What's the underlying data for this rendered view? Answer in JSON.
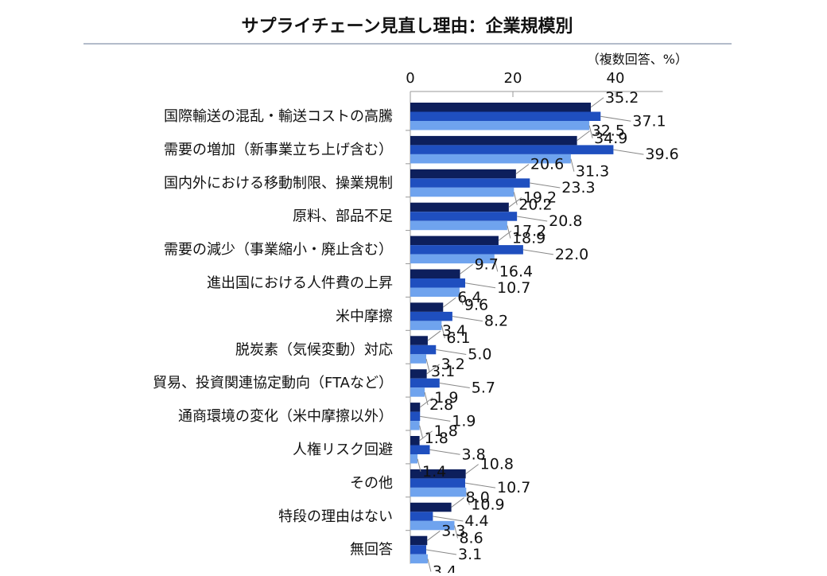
{
  "chart_data": {
    "type": "bar",
    "orientation": "horizontal",
    "title": "サプライチェーン見直し理由：企業規模別",
    "unit_note": "（複数回答、%）",
    "xticks": [
      0,
      20,
      40
    ],
    "xlim": [
      0,
      50
    ],
    "grid": false,
    "legend": "none",
    "categories": [
      "国際輸送の混乱・輸送コストの高騰",
      "需要の増加（新事業立ち上げ含む）",
      "国内外における移動制限、操業規制",
      "原料、部品不足",
      "需要の減少（事業縮小・廃止含む）",
      "進出国における人件費の上昇",
      "米中摩擦",
      "脱炭素（気候変動）対応",
      "貿易、投資関連協定動向（FTAなど）",
      "通商環境の変化（米中摩擦以外）",
      "人権リスク回避",
      "その他",
      "特段の理由はない",
      "無回答"
    ],
    "series": [
      {
        "color": "#0d1f5c",
        "values": [
          35.2,
          32.5,
          20.6,
          19.2,
          17.2,
          9.7,
          6.4,
          3.4,
          3.2,
          1.9,
          1.8,
          10.8,
          8.0,
          3.3
        ]
      },
      {
        "color": "#1f4fbf",
        "values": [
          37.1,
          39.6,
          23.3,
          20.8,
          22.0,
          10.7,
          8.2,
          5.0,
          5.7,
          1.9,
          3.8,
          10.7,
          4.4,
          3.1
        ]
      },
      {
        "color": "#6fa3ee",
        "values": [
          34.9,
          31.3,
          20.2,
          18.9,
          16.4,
          9.6,
          6.1,
          3.1,
          2.8,
          1.8,
          1.4,
          10.9,
          8.6,
          3.4
        ]
      }
    ]
  }
}
